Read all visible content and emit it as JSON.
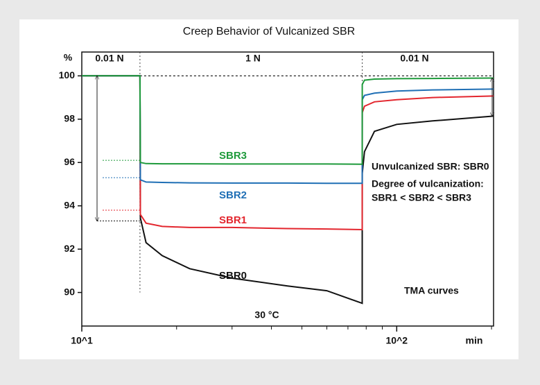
{
  "chart_data": {
    "type": "line",
    "title": "Creep Behavior of Vulcanized SBR",
    "y_label": "%",
    "x_label": "min",
    "log_x": true,
    "xlim": [
      10,
      203
    ],
    "xticks": [
      {
        "value": 10,
        "label": "10^1"
      },
      {
        "value": 100,
        "label": "10^2"
      }
    ],
    "xminorticks": [
      20,
      30,
      40,
      50,
      60,
      70,
      80,
      90,
      200
    ],
    "ylim": [
      88.45,
      101.1
    ],
    "yticks": [
      90,
      92,
      94,
      96,
      98,
      100
    ],
    "vlines": [
      15.3,
      77.7
    ],
    "hline": 100,
    "x": [
      10,
      15.3,
      15.35,
      16,
      18,
      22,
      30,
      45,
      60,
      77.7,
      77.75,
      79,
      85,
      100,
      130,
      203
    ],
    "series": [
      {
        "name": "SBR0",
        "color": "#111111",
        "extrapolated": 93.3,
        "values": [
          100,
          100,
          93.44,
          92.3,
          91.7,
          91.1,
          90.66,
          90.3,
          90.08,
          89.5,
          95.5,
          96.5,
          97.44,
          97.76,
          97.92,
          98.14
        ]
      },
      {
        "name": "SBR1",
        "color": "#e3262e",
        "extrapolated": 93.8,
        "values": [
          100,
          100,
          93.6,
          93.2,
          93.05,
          93.0,
          93.0,
          92.95,
          92.93,
          92.9,
          98.3,
          98.6,
          98.8,
          98.9,
          99.0,
          99.07
        ]
      },
      {
        "name": "SBR2",
        "color": "#1f6fb5",
        "extrapolated": 95.3,
        "values": [
          100,
          100,
          95.2,
          95.1,
          95.08,
          95.06,
          95.05,
          95.05,
          95.04,
          95.04,
          98.9,
          99.1,
          99.2,
          99.3,
          99.35,
          99.39
        ]
      },
      {
        "name": "SBR3",
        "color": "#1e9a3b",
        "extrapolated": 96.1,
        "values": [
          100,
          100,
          96.0,
          95.95,
          95.94,
          95.94,
          95.93,
          95.93,
          95.93,
          95.92,
          99.6,
          99.8,
          99.85,
          99.87,
          99.88,
          99.9
        ]
      }
    ],
    "annotations": [
      "0.01 N",
      "1 N",
      "0.01 N",
      "Unvulcanized SBR: SBR0",
      "Degree of vulcanization:",
      "SBR1 < SBR2 < SBR3",
      "TMA curves",
      "30 °C"
    ]
  }
}
